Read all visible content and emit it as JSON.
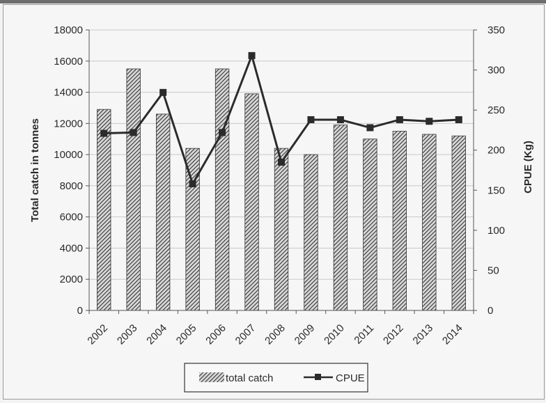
{
  "chart_data": {
    "type": "bar",
    "categories": [
      "2002",
      "2003",
      "2004",
      "2005",
      "2006",
      "2007",
      "2008",
      "2009",
      "2010",
      "2011",
      "2012",
      "2013",
      "2014"
    ],
    "series": [
      {
        "name": "total catch",
        "type": "bar",
        "axis": "left",
        "values": [
          12900,
          15500,
          12600,
          10400,
          15500,
          13900,
          10400,
          10000,
          11900,
          11000,
          11500,
          11300,
          11200
        ],
        "color": "#3a3a3a",
        "pattern": "diagonal-hatch"
      },
      {
        "name": "CPUE",
        "type": "line",
        "axis": "right",
        "values": [
          221,
          222,
          272,
          158,
          222,
          318,
          185,
          238,
          238,
          228,
          238,
          236,
          238
        ],
        "color": "#2b2b2b",
        "marker": "square"
      }
    ],
    "ylabel": "Total catch in tonnes",
    "ylabel_right": "CPUE (Kg)",
    "ylim": [
      0,
      18000
    ],
    "yticks": [
      "0",
      "2000",
      "4000",
      "6000",
      "8000",
      "10000",
      "12000",
      "14000",
      "16000",
      "18000"
    ],
    "ylim_right": [
      0,
      350
    ],
    "yticks_right": [
      "0",
      "50",
      "100",
      "150",
      "200",
      "250",
      "300",
      "350"
    ],
    "grid": true,
    "legend_position": "bottom-center"
  }
}
